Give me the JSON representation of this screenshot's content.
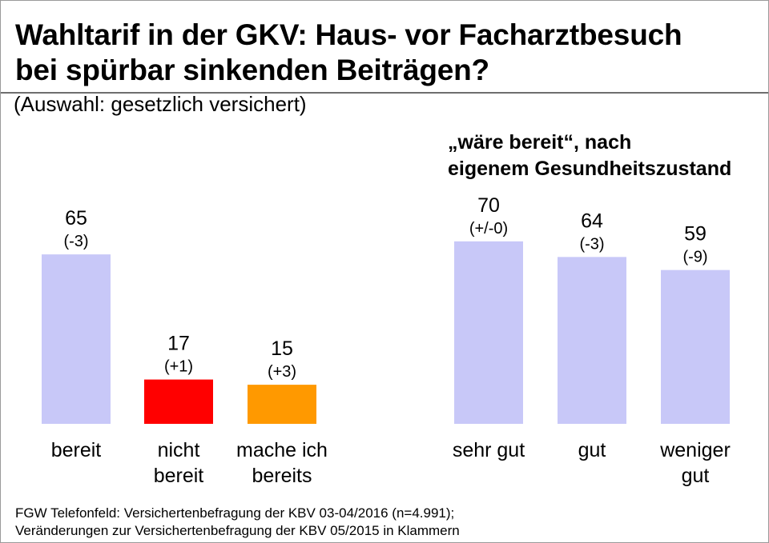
{
  "title": {
    "line1": "Wahltarif in der GKV: Haus- vor Facharztbesuch",
    "line2": "bei spürbar sinkenden Beiträgen?"
  },
  "subtitle": "(Auswahl: gesetzlich versichert)",
  "group_heading": {
    "line1": "„wäre bereit“, nach",
    "line2": "eigenem Gesundheitszustand"
  },
  "chart_data": [
    {
      "type": "bar",
      "categories": [
        [
          "bereit"
        ],
        [
          "nicht",
          "bereit"
        ],
        [
          "mache ich",
          "bereits"
        ]
      ],
      "values": [
        65,
        17,
        15
      ],
      "changes": [
        "(-3)",
        "(+1)",
        "(+3)"
      ],
      "colors": [
        "#c8c8f8",
        "#ff0000",
        "#ff9900"
      ],
      "ylim": [
        0,
        100
      ]
    },
    {
      "type": "bar",
      "title": "„wäre bereit“, nach eigenem Gesundheitszustand",
      "categories": [
        [
          "sehr gut"
        ],
        [
          "gut"
        ],
        [
          "weniger",
          "gut"
        ]
      ],
      "values": [
        70,
        64,
        59
      ],
      "changes": [
        "(+/-0)",
        "(-3)",
        "(-9)"
      ],
      "colors": [
        "#c8c8f8",
        "#c8c8f8",
        "#c8c8f8"
      ],
      "ylim": [
        0,
        100
      ]
    }
  ],
  "footer": {
    "line1": "FGW Telefonfeld: Versichertenbefragung der KBV 03-04/2016 (n=4.991);",
    "line2": "Veränderungen zur Versichertenbefragung der KBV 05/2015 in Klammern"
  }
}
